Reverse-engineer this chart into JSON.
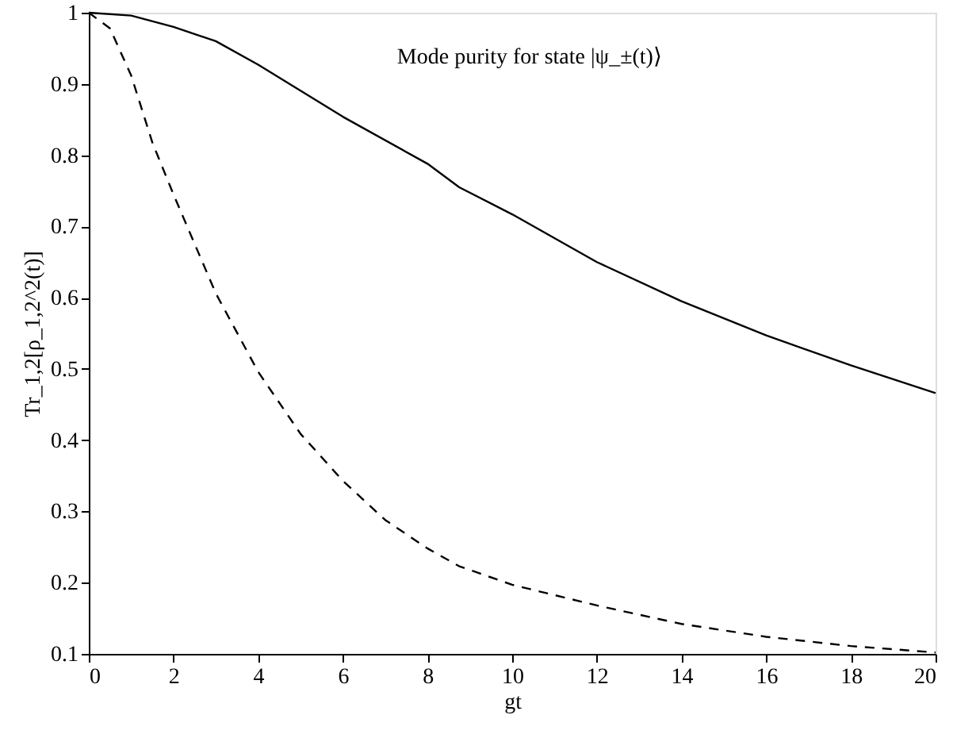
{
  "chart_data": {
    "type": "line",
    "xlabel": "gt",
    "ylabel": "Tr_1,2[ρ_1,2^2(t)]",
    "annotations": [
      "Mode purity for state |ψ_±(t)⟩"
    ],
    "xlim": [
      0,
      20
    ],
    "ylim": [
      0.1,
      1
    ],
    "xticks": [
      0,
      2,
      4,
      6,
      8,
      10,
      12,
      14,
      16,
      18,
      20
    ],
    "yticks": [
      0.1,
      0.2,
      0.3,
      0.4,
      0.5,
      0.6,
      0.7,
      0.8,
      0.9,
      1
    ],
    "grid": false,
    "series": [
      {
        "color": "#000000",
        "line_style": "solid",
        "x": [
          0,
          1,
          2,
          3,
          4,
          6,
          8,
          8.75,
          10,
          12,
          14,
          16,
          18,
          20
        ],
        "values": [
          1,
          0.996,
          0.98,
          0.96,
          0.927,
          0.854,
          0.788,
          0.755,
          0.717,
          0.65,
          0.595,
          0.547,
          0.505,
          0.466
        ]
      },
      {
        "color": "#000000",
        "line_style": "dashed",
        "x": [
          0,
          0.5,
          1,
          1.5,
          2,
          3,
          4,
          5,
          6,
          7,
          8,
          8.75,
          10,
          12,
          14,
          16,
          18,
          20
        ],
        "values": [
          1,
          0.978,
          0.912,
          0.818,
          0.745,
          0.606,
          0.496,
          0.409,
          0.343,
          0.288,
          0.248,
          0.223,
          0.197,
          0.168,
          0.142,
          0.124,
          0.111,
          0.102
        ]
      }
    ]
  }
}
